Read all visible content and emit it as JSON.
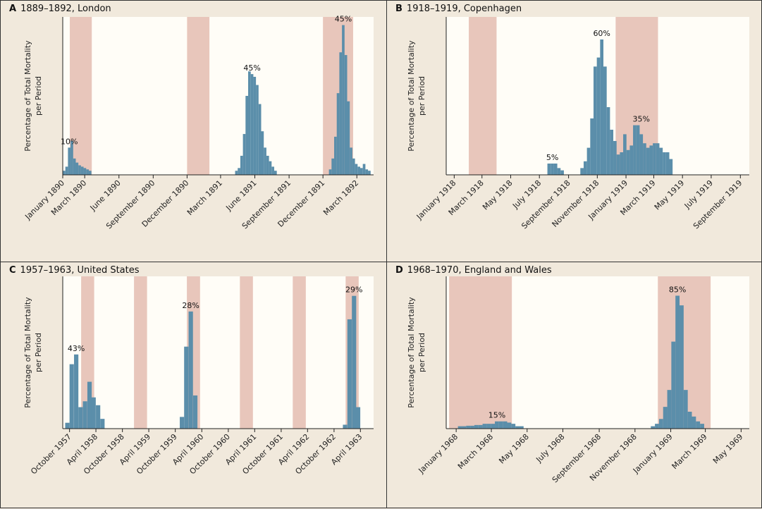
{
  "panels": [
    {
      "letter": "A",
      "title": "1889–1892, London"
    },
    {
      "letter": "B",
      "title": "1918–1919, Copenhagen"
    },
    {
      "letter": "C",
      "title": "1957–1963, United States"
    },
    {
      "letter": "D",
      "title": "1968–1970, England and Wales"
    }
  ],
  "chart_data": [
    {
      "type": "bar",
      "title": "1889–1892, London",
      "ylabel": "Percentage of Total Mortality per Period",
      "xlim": [
        "1890-01-01",
        "1892-04-15"
      ],
      "tick_labels": [
        {
          "date": "1890-01-01",
          "label": "January 1890"
        },
        {
          "date": "1890-03-01",
          "label": "March 1890"
        },
        {
          "date": "1890-06-01",
          "label": "June 1890"
        },
        {
          "date": "1890-09-01",
          "label": "September 1890"
        },
        {
          "date": "1890-12-01",
          "label": "December 1890"
        },
        {
          "date": "1891-03-01",
          "label": "March 1891"
        },
        {
          "date": "1891-06-01",
          "label": "June 1891"
        },
        {
          "date": "1891-09-01",
          "label": "September 1891"
        },
        {
          "date": "1891-12-01",
          "label": "December 1891"
        },
        {
          "date": "1892-03-01",
          "label": "March 1892"
        }
      ],
      "shaded_periods": [
        [
          "1890-01-20",
          "1890-03-20"
        ],
        [
          "1890-12-01",
          "1891-01-30"
        ],
        [
          "1891-12-01",
          "1892-02-20"
        ]
      ],
      "bar_period_days": 7,
      "series": [
        {
          "x": [
            "1890-01-01",
            "1890-01-08",
            "1890-01-15",
            "1890-01-22",
            "1890-01-29",
            "1890-02-05",
            "1890-02-12",
            "1890-02-19",
            "1890-02-26",
            "1890-03-05",
            "1890-03-12",
            "1891-04-09",
            "1891-04-16",
            "1891-04-23",
            "1891-04-30",
            "1891-05-07",
            "1891-05-14",
            "1891-05-21",
            "1891-05-28",
            "1891-06-04",
            "1891-06-11",
            "1891-06-18",
            "1891-06-25",
            "1891-07-02",
            "1891-07-09",
            "1891-07-16",
            "1891-07-23",
            "1891-12-17",
            "1891-12-24",
            "1891-12-31",
            "1892-01-07",
            "1892-01-14",
            "1892-01-21",
            "1892-01-28",
            "1892-02-04",
            "1892-02-11",
            "1892-02-18",
            "1892-02-25",
            "1892-03-03",
            "1892-03-10",
            "1892-03-17",
            "1892-03-24",
            "1892-03-31"
          ],
          "values": [
            1.5,
            3.0,
            10.0,
            12.5,
            6.0,
            4.5,
            3.5,
            3.0,
            2.5,
            2.0,
            1.5,
            1.5,
            2.5,
            7.0,
            15.0,
            29.0,
            38.0,
            37.0,
            36.0,
            33.0,
            26.0,
            16.0,
            10.0,
            7.0,
            5.0,
            3.0,
            1.5,
            2.0,
            6.0,
            14.0,
            30.0,
            45.0,
            55.0,
            44.0,
            27.0,
            10.0,
            6.0,
            4.0,
            3.0,
            2.5,
            4.0,
            2.0,
            1.5
          ]
        }
      ],
      "annotations": [
        {
          "text": "10%",
          "x": "1890-01-15",
          "y": 10.0
        },
        {
          "text": "45%",
          "x": "1891-05-21",
          "y": 37.0
        },
        {
          "text": "45%",
          "x": "1892-01-21",
          "y": 55.0
        }
      ],
      "ylim": [
        0,
        58
      ]
    },
    {
      "type": "bar",
      "title": "1918–1919, Copenhagen",
      "ylabel": "Percentage of Total Mortality per Period",
      "xlim": [
        "1917-12-15",
        "1919-09-20"
      ],
      "tick_labels": [
        {
          "date": "1918-01-01",
          "label": "January 1918"
        },
        {
          "date": "1918-03-01",
          "label": "March 1918"
        },
        {
          "date": "1918-05-01",
          "label": "May 1918"
        },
        {
          "date": "1918-07-01",
          "label": "July 1918"
        },
        {
          "date": "1918-09-01",
          "label": "September 1918"
        },
        {
          "date": "1918-11-01",
          "label": "November 1918"
        },
        {
          "date": "1919-01-01",
          "label": "January 1919"
        },
        {
          "date": "1919-03-01",
          "label": "March 1919"
        },
        {
          "date": "1919-05-01",
          "label": "May 1919"
        },
        {
          "date": "1919-07-01",
          "label": "July 1919"
        },
        {
          "date": "1919-09-01",
          "label": "September 1919"
        }
      ],
      "shaded_periods": [
        [
          "1918-02-01",
          "1918-04-01"
        ],
        [
          "1918-12-10",
          "1919-03-10"
        ]
      ],
      "bar_period_days": 7,
      "series": [
        {
          "x": [
            "1918-07-18",
            "1918-07-25",
            "1918-08-01",
            "1918-08-08",
            "1918-08-15",
            "1918-09-26",
            "1918-10-03",
            "1918-10-10",
            "1918-10-17",
            "1918-10-24",
            "1918-10-31",
            "1918-11-07",
            "1918-11-14",
            "1918-11-21",
            "1918-11-28",
            "1918-12-05",
            "1918-12-12",
            "1918-12-19",
            "1918-12-26",
            "1919-01-02",
            "1919-01-09",
            "1919-01-16",
            "1919-01-23",
            "1919-01-30",
            "1919-02-06",
            "1919-02-13",
            "1919-02-20",
            "1919-02-27",
            "1919-03-06",
            "1919-03-13",
            "1919-03-20",
            "1919-03-27",
            "1919-04-03"
          ],
          "values": [
            5,
            5,
            5,
            3,
            2,
            3,
            6,
            12,
            25,
            48,
            52,
            60,
            48,
            30,
            20,
            15,
            9,
            10,
            18,
            11,
            13,
            22,
            22,
            18,
            14,
            12,
            13,
            14,
            14,
            12,
            10,
            10,
            7
          ]
        }
      ],
      "annotations": [
        {
          "text": "5%",
          "x": "1918-07-25",
          "y": 5
        },
        {
          "text": "60%",
          "x": "1918-11-07",
          "y": 60
        },
        {
          "text": "35%",
          "x": "1919-01-30",
          "y": 22
        }
      ],
      "ylim": [
        0,
        70
      ]
    },
    {
      "type": "bar",
      "title": "1957–1963, United States",
      "ylabel": "Percentage of Total Mortality per Period",
      "xlim": [
        "1957-08-15",
        "1963-07-01"
      ],
      "tick_labels": [
        {
          "date": "1957-10-01",
          "label": "October 1957"
        },
        {
          "date": "1958-04-01",
          "label": "April 1958"
        },
        {
          "date": "1958-10-01",
          "label": "October 1958"
        },
        {
          "date": "1959-04-01",
          "label": "April 1959"
        },
        {
          "date": "1959-10-01",
          "label": "October 1959"
        },
        {
          "date": "1960-04-01",
          "label": "April 1960"
        },
        {
          "date": "1960-10-01",
          "label": "October 1960"
        },
        {
          "date": "1961-04-01",
          "label": "April 1961"
        },
        {
          "date": "1961-10-01",
          "label": "October 1961"
        },
        {
          "date": "1962-04-01",
          "label": "April 1962"
        },
        {
          "date": "1962-10-01",
          "label": "October 1962"
        },
        {
          "date": "1963-04-01",
          "label": "April 1963"
        }
      ],
      "shaded_periods": [
        [
          "1957-12-20",
          "1958-03-20"
        ],
        [
          "1958-12-20",
          "1959-03-20"
        ],
        [
          "1959-12-20",
          "1960-03-20"
        ],
        [
          "1960-12-20",
          "1961-03-20"
        ],
        [
          "1961-12-20",
          "1962-03-20"
        ],
        [
          "1962-12-20",
          "1963-03-20"
        ]
      ],
      "bar_period_days": 30,
      "series": [
        {
          "x": [
            "1957-09-01",
            "1957-10-01",
            "1957-11-01",
            "1957-12-01",
            "1958-01-01",
            "1958-02-01",
            "1958-03-01",
            "1958-04-01",
            "1958-05-01",
            "1959-11-01",
            "1959-12-01",
            "1960-01-01",
            "1960-02-01",
            "1962-12-01",
            "1963-01-01",
            "1963-02-01",
            "1963-03-01"
          ],
          "values": [
            3,
            33,
            38,
            11,
            14,
            24,
            16,
            12,
            5,
            6,
            42,
            60,
            17,
            2,
            56,
            68,
            11
          ]
        }
      ],
      "annotations": [
        {
          "text": "43%",
          "x": "1957-11-01",
          "y": 38
        },
        {
          "text": "28%",
          "x": "1960-01-01",
          "y": 60
        },
        {
          "text": "29%",
          "x": "1963-02-01",
          "y": 68
        }
      ],
      "ylim": [
        0,
        78
      ]
    },
    {
      "type": "bar",
      "title": "1968–1970, England and Wales",
      "ylabel": "Percentage of Total Mortality per Period",
      "xlim": [
        "1967-12-15",
        "1969-05-15"
      ],
      "tick_labels": [
        {
          "date": "1968-01-01",
          "label": "January 1968"
        },
        {
          "date": "1968-03-01",
          "label": "March 1968"
        },
        {
          "date": "1968-05-01",
          "label": "May 1968"
        },
        {
          "date": "1968-07-01",
          "label": "July 1968"
        },
        {
          "date": "1968-09-01",
          "label": "September 1968"
        },
        {
          "date": "1968-11-01",
          "label": "November 1968"
        },
        {
          "date": "1969-01-01",
          "label": "January 1969"
        },
        {
          "date": "1969-03-01",
          "label": "March 1969"
        },
        {
          "date": "1969-05-01",
          "label": "May 1969"
        }
      ],
      "shaded_periods": [
        [
          "1967-12-20",
          "1968-04-05"
        ],
        [
          "1968-12-10",
          "1969-03-10"
        ]
      ],
      "bar_period_days": 7,
      "series": [
        {
          "x": [
            "1968-01-04",
            "1968-01-11",
            "1968-01-18",
            "1968-01-25",
            "1968-02-01",
            "1968-02-08",
            "1968-02-15",
            "1968-02-22",
            "1968-02-29",
            "1968-03-07",
            "1968-03-14",
            "1968-03-21",
            "1968-03-28",
            "1968-04-04",
            "1968-04-11",
            "1968-04-18",
            "1968-11-28",
            "1968-12-05",
            "1968-12-12",
            "1968-12-19",
            "1968-12-26",
            "1969-01-02",
            "1969-01-09",
            "1969-01-16",
            "1969-01-23",
            "1969-01-30",
            "1969-02-06",
            "1969-02-13",
            "1969-02-20"
          ],
          "values": [
            1,
            1,
            1.2,
            1.2,
            1.5,
            1.5,
            2,
            2,
            2,
            3,
            3,
            3,
            2.5,
            2,
            1,
            1,
            1,
            2,
            4,
            9,
            16,
            36,
            55,
            51,
            16,
            7,
            5,
            3,
            2
          ]
        }
      ],
      "annotations": [
        {
          "text": "15%",
          "x": "1968-03-07",
          "y": 3
        },
        {
          "text": "85%",
          "x": "1969-01-09",
          "y": 55
        }
      ],
      "ylim": [
        0,
        63
      ]
    }
  ]
}
